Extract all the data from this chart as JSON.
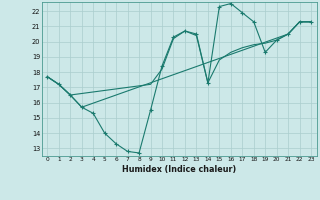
{
  "xlabel": "Humidex (Indice chaleur)",
  "bg_color": "#cce8e8",
  "line_color": "#1a7a6e",
  "grid_color": "#aacece",
  "xlim": [
    -0.5,
    23.5
  ],
  "ylim": [
    12.5,
    22.6
  ],
  "xticks": [
    0,
    1,
    2,
    3,
    4,
    5,
    6,
    7,
    8,
    9,
    10,
    11,
    12,
    13,
    14,
    15,
    16,
    17,
    18,
    19,
    20,
    21,
    22,
    23
  ],
  "yticks": [
    13,
    14,
    15,
    16,
    17,
    18,
    19,
    20,
    21,
    22
  ],
  "line1_x": [
    0,
    1,
    2,
    3,
    4,
    5,
    6,
    7,
    8,
    9,
    10,
    11,
    12,
    13,
    14,
    15,
    16,
    17,
    18,
    19,
    20,
    21,
    22,
    23
  ],
  "line1_y": [
    17.7,
    17.2,
    16.5,
    15.7,
    15.3,
    14.0,
    13.3,
    12.8,
    12.7,
    15.5,
    18.4,
    20.3,
    20.7,
    20.5,
    17.3,
    22.3,
    22.5,
    21.9,
    21.3,
    19.3,
    20.1,
    20.5,
    21.3,
    21.3
  ],
  "line2_x": [
    0,
    1,
    2,
    9,
    10,
    11,
    12,
    13,
    14,
    15,
    16,
    17,
    18,
    19,
    20,
    21,
    22,
    23
  ],
  "line2_y": [
    17.7,
    17.2,
    16.5,
    17.2,
    18.2,
    20.2,
    20.7,
    20.4,
    17.3,
    18.8,
    19.3,
    19.6,
    19.8,
    19.9,
    20.1,
    20.5,
    21.3,
    21.3
  ],
  "line3_x": [
    0,
    1,
    2,
    3,
    21,
    22,
    23
  ],
  "line3_y": [
    17.7,
    17.2,
    16.5,
    15.7,
    20.5,
    21.3,
    21.3
  ]
}
